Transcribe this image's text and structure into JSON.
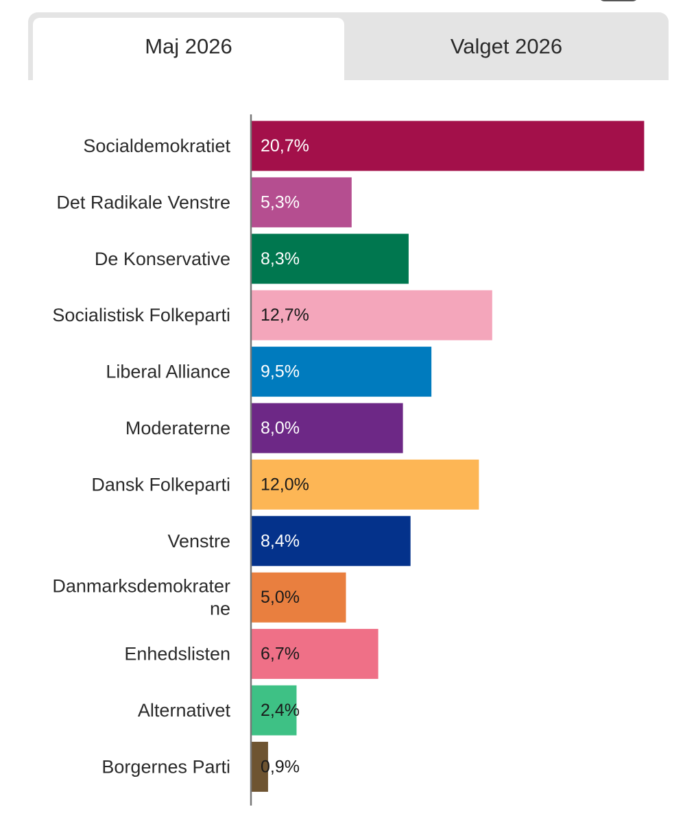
{
  "tabs": [
    {
      "label": "Maj 2026",
      "active": true
    },
    {
      "label": "Valget 2026",
      "active": false
    }
  ],
  "chart_data": {
    "type": "bar",
    "orientation": "horizontal",
    "title": "",
    "xlabel": "",
    "ylabel": "",
    "xlim": [
      0,
      21
    ],
    "grid": false,
    "legend": "none",
    "categories": [
      "Socialdemokratiet",
      "Det Radikale Venstre",
      "De Konservative",
      "Socialistisk Folkeparti",
      "Liberal Alliance",
      "Moderaterne",
      "Dansk Folkeparti",
      "Venstre",
      "Danmarksdemokraterne",
      "Enhedslisten",
      "Alternativet",
      "Borgernes Parti"
    ],
    "category_lines": [
      [
        "Socialdemokratiet"
      ],
      [
        "Det Radikale Venstre"
      ],
      [
        "De Konservative"
      ],
      [
        "Socialistisk Folkeparti"
      ],
      [
        "Liberal Alliance"
      ],
      [
        "Moderaterne"
      ],
      [
        "Dansk Folkeparti"
      ],
      [
        "Venstre"
      ],
      [
        "Danmarksdemokrater",
        "ne"
      ],
      [
        "Enhedslisten"
      ],
      [
        "Alternativet"
      ],
      [
        "Borgernes Parti"
      ]
    ],
    "values": [
      20.7,
      5.3,
      8.3,
      12.7,
      9.5,
      8.0,
      12.0,
      8.4,
      5.0,
      6.7,
      2.4,
      0.9
    ],
    "value_labels": [
      "20,7%",
      "5,3%",
      "8,3%",
      "12,7%",
      "9,5%",
      "8,0%",
      "12,0%",
      "8,4%",
      "5,0%",
      "6,7%",
      "2,4%",
      "0,9%"
    ],
    "colors": [
      "#a3104a",
      "#b54e90",
      "#00774f",
      "#f4a6bb",
      "#007bbe",
      "#6d2886",
      "#fdb655",
      "#04328b",
      "#e97f3f",
      "#ef7087",
      "#3ec185",
      "#6e5431"
    ],
    "label_colors": [
      "#ffffff",
      "#ffffff",
      "#ffffff",
      "#1a1a1a",
      "#ffffff",
      "#ffffff",
      "#1a1a1a",
      "#ffffff",
      "#1a1a1a",
      "#1a1a1a",
      "#1a1a1a",
      "#1a1a1a"
    ]
  }
}
